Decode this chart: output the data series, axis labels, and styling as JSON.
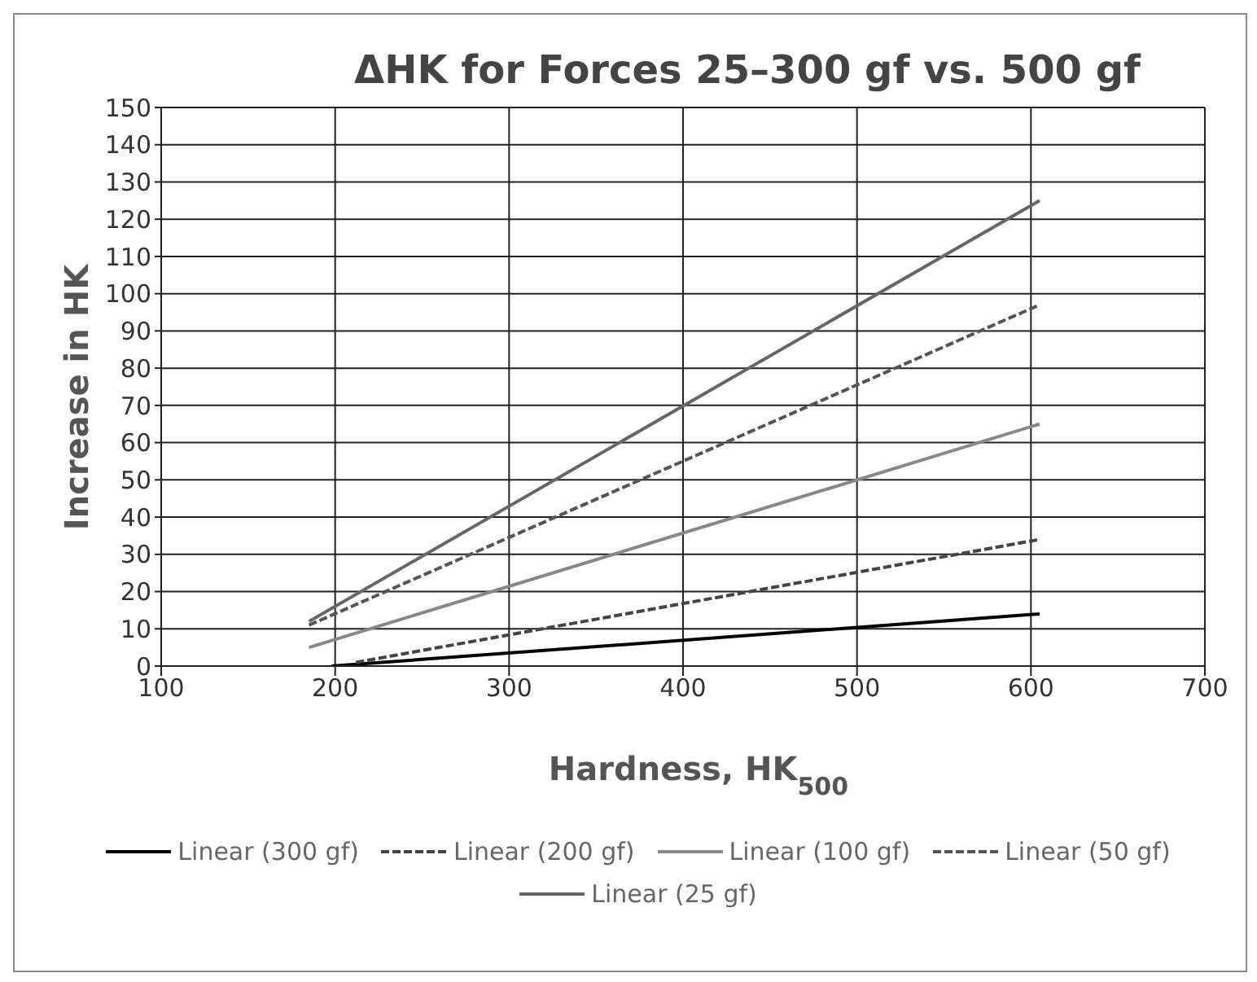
{
  "chart_data": {
    "type": "line",
    "title": "ΔHK for Forces 25–300 gf vs. 500 gf",
    "xlabel": "Hardness, HK$_{500}$",
    "ylabel": "Increase in HK",
    "series": [
      {
        "name": "Linear (300 gf)",
        "color": "#000000",
        "line_style": "solid",
        "x": [
          198,
          605
        ],
        "values": [
          0,
          14
        ]
      },
      {
        "name": "Linear (200 gf)",
        "color": "#444444",
        "line_style": "dashed",
        "x": [
          212,
          605
        ],
        "values": [
          1,
          34
        ]
      },
      {
        "name": "Linear (100 gf)",
        "color": "#888888",
        "line_style": "solid",
        "x": [
          185,
          605
        ],
        "values": [
          5,
          65
        ]
      },
      {
        "name": "Linear (50 gf)",
        "color": "#555555",
        "line_style": "dashed",
        "x": [
          185,
          605
        ],
        "values": [
          11,
          97
        ]
      },
      {
        "name": "Linear (25 gf)",
        "color": "#666666",
        "line_style": "solid",
        "x": [
          185,
          605
        ],
        "values": [
          12,
          125
        ]
      }
    ],
    "xlim": [
      100,
      700
    ],
    "xticks": [
      100,
      200,
      300,
      400,
      500,
      600,
      700
    ],
    "ylim": [
      0,
      150
    ],
    "yticks": [
      0,
      10,
      20,
      30,
      40,
      50,
      60,
      70,
      80,
      90,
      100,
      110,
      120,
      130,
      140,
      150
    ],
    "grid": true,
    "legend": "bottom",
    "marker": "none"
  }
}
